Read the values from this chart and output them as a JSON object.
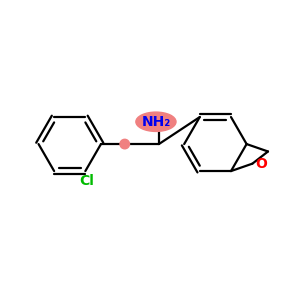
{
  "background_color": "#ffffff",
  "bond_color": "#000000",
  "cl_color": "#00bb00",
  "o_color": "#ff0000",
  "nh2_color": "#0000ee",
  "nh2_bg_color": "#f08080",
  "ch2_dot_color": "#f08080",
  "cl_label": "Cl",
  "o_label": "O",
  "nh2_label": "NH₂",
  "fig_width": 3.0,
  "fig_height": 3.0,
  "dpi": 100
}
